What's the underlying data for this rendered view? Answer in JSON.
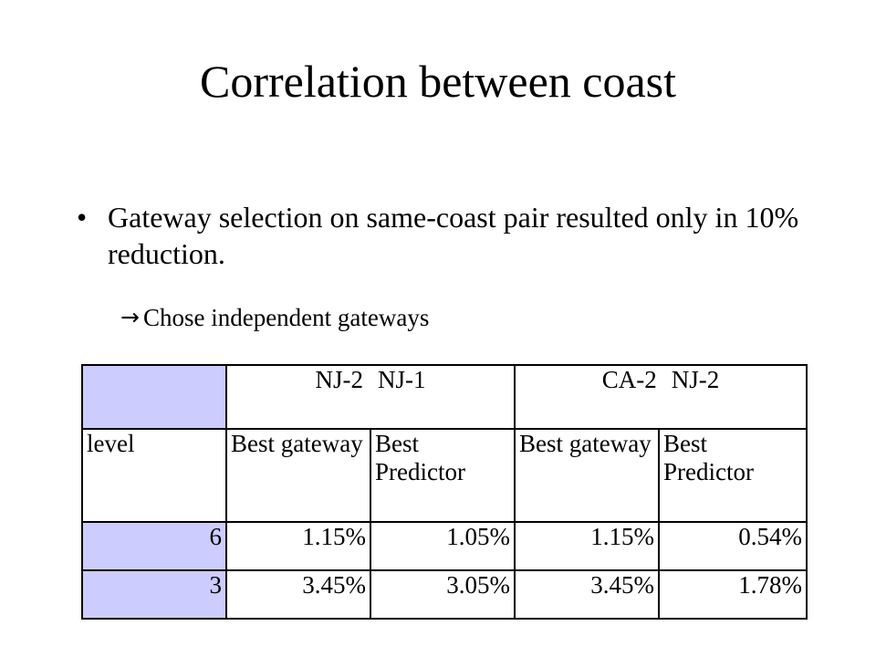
{
  "slide": {
    "title": "Correlation between coast",
    "bullet": "Gateway selection on same-coast pair resulted only in 10% reduction.",
    "bullet_marker": "•",
    "sub_arrow": "→",
    "sub_text": "Chose independent gateways"
  },
  "table": {
    "group_headers": [
      {
        "a": "NJ-2",
        "b": "NJ-1"
      },
      {
        "a": "CA-2",
        "b": "NJ-2"
      }
    ],
    "sub_headers": [
      "level",
      "Best gateway",
      "Best Predictor",
      "Best gateway",
      "Best Predictor"
    ],
    "rows": [
      [
        "6",
        "1.15%",
        "1.05%",
        "1.15%",
        "0.54%"
      ],
      [
        "3",
        "3.45%",
        "3.05%",
        "3.45%",
        "1.78%"
      ]
    ],
    "shade_color": "#ccccff"
  }
}
